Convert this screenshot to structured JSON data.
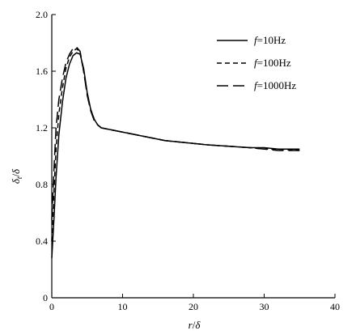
{
  "chart_data": {
    "type": "line",
    "xlabel_main": "r",
    "xlabel_sep": "/",
    "xlabel_denom": "δ",
    "ylabel_main": "δ",
    "ylabel_sub": "t",
    "ylabel_sep": "/",
    "ylabel_denom": "δ",
    "xlim": [
      0,
      40
    ],
    "ylim": [
      0,
      2.0
    ],
    "x_ticks": [
      0,
      10,
      20,
      30,
      40
    ],
    "x_tick_labels": [
      "0",
      "10",
      "20",
      "30",
      "40"
    ],
    "y_ticks": [
      0,
      0.4,
      0.8,
      1.2,
      1.6,
      2.0
    ],
    "y_tick_labels": [
      "0",
      "0.4",
      "0.8",
      "1.2",
      "1.6",
      "2.0"
    ],
    "grid": false,
    "legend_position": "top-right",
    "series": [
      {
        "name_prefix": "f",
        "name_suffix": "=10Hz",
        "line_style": "solid",
        "x": [
          0,
          0.3,
          0.6,
          1.0,
          1.5,
          2.0,
          2.5,
          3.0,
          3.5,
          4.0,
          4.5,
          5.0,
          5.5,
          6.0,
          6.5,
          7.0,
          8.0,
          9.0,
          10,
          12,
          14,
          16,
          18,
          20,
          22,
          25,
          28,
          30,
          32,
          35
        ],
        "y": [
          0.28,
          0.55,
          0.85,
          1.15,
          1.38,
          1.55,
          1.65,
          1.71,
          1.73,
          1.72,
          1.62,
          1.45,
          1.33,
          1.26,
          1.22,
          1.2,
          1.19,
          1.18,
          1.17,
          1.15,
          1.13,
          1.11,
          1.1,
          1.09,
          1.08,
          1.07,
          1.06,
          1.06,
          1.05,
          1.05
        ]
      },
      {
        "name_prefix": "f",
        "name_suffix": "=100Hz",
        "line_style": "dashed",
        "x": [
          0,
          0.3,
          0.6,
          1.0,
          1.5,
          2.0,
          2.5,
          3.0,
          3.5,
          4.0,
          4.5,
          5.0,
          5.5,
          6.0,
          6.5,
          7.0,
          8.0,
          9.0,
          10,
          12,
          14,
          16,
          18,
          20,
          22,
          25,
          28,
          30,
          32,
          35
        ],
        "y": [
          0.4,
          0.75,
          1.05,
          1.3,
          1.48,
          1.62,
          1.7,
          1.74,
          1.76,
          1.73,
          1.6,
          1.44,
          1.33,
          1.26,
          1.22,
          1.2,
          1.19,
          1.18,
          1.17,
          1.15,
          1.13,
          1.11,
          1.1,
          1.09,
          1.08,
          1.07,
          1.06,
          1.05,
          1.05,
          1.04
        ]
      },
      {
        "name_prefix": "f",
        "name_suffix": "=1000Hz",
        "line_style": "longdash",
        "x": [
          0,
          0.3,
          0.6,
          1.0,
          1.5,
          2.0,
          2.5,
          3.0,
          3.5,
          4.0,
          4.5,
          5.0,
          5.5,
          6.0,
          6.5,
          7.0,
          8.0,
          9.0,
          10,
          12,
          14,
          16,
          18,
          20,
          22,
          25,
          28,
          30,
          32,
          35
        ],
        "y": [
          0.55,
          0.9,
          1.2,
          1.4,
          1.55,
          1.66,
          1.72,
          1.76,
          1.77,
          1.74,
          1.6,
          1.43,
          1.32,
          1.25,
          1.22,
          1.2,
          1.19,
          1.18,
          1.17,
          1.15,
          1.13,
          1.11,
          1.1,
          1.09,
          1.08,
          1.07,
          1.06,
          1.05,
          1.04,
          1.04
        ]
      }
    ]
  }
}
